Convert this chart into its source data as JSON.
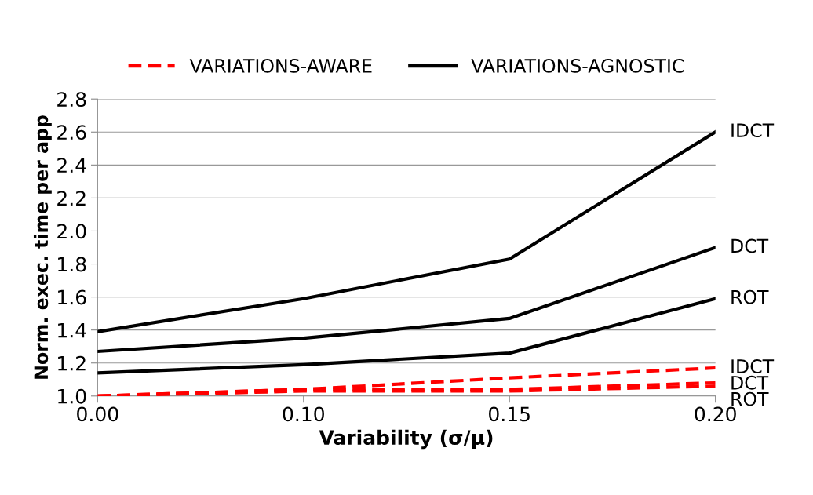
{
  "chart_data": {
    "type": "line",
    "xlabel": "Variability (σ/μ)",
    "ylabel": "Norm. exec. time per app",
    "categories": [
      "0.00",
      "0.10",
      "0.15",
      "0.20"
    ],
    "ylim": [
      1.0,
      2.8
    ],
    "yticks": [
      {
        "value": 1.0,
        "label": "1.0"
      },
      1.2,
      1.4,
      1.6,
      1.8,
      {
        "value": 2.0,
        "label": "2.0"
      },
      2.2,
      2.4,
      2.6,
      2.8
    ],
    "grid": "y",
    "legend": "top",
    "marker": "none",
    "series": [
      {
        "name": "VARIATIONS-AWARE",
        "color": "#ff0000",
        "line_style": "dashed",
        "values": [
          1.0,
          1.04,
          1.11,
          1.17
        ]
      },
      {
        "color": "#ff0000",
        "line_style": "dashed",
        "values": [
          1.0,
          1.04,
          1.04,
          1.08
        ]
      },
      {
        "color": "#ff0000",
        "line_style": "dashed",
        "values": [
          1.0,
          1.03,
          1.03,
          1.06
        ]
      },
      {
        "name": "VARIATIONS-AGNOSTIC",
        "color": "#000000",
        "line_style": "solid",
        "values": [
          1.39,
          1.59,
          1.83,
          2.6
        ]
      },
      {
        "color": "#000000",
        "line_style": "solid",
        "values": [
          1.27,
          1.35,
          1.47,
          1.9
        ]
      },
      {
        "color": "#000000",
        "line_style": "solid",
        "values": [
          1.14,
          1.19,
          1.26,
          1.59
        ]
      }
    ],
    "annotations": [
      {
        "text": "IDCT",
        "x": "0.20",
        "y": 2.6
      },
      {
        "text": "DCT",
        "x": "0.20",
        "y": 1.9
      },
      {
        "text": "ROT",
        "x": "0.20",
        "y": 1.59
      },
      {
        "text": "IDCT",
        "x": "0.20",
        "y": 1.17
      },
      {
        "text": "DCT",
        "x": "0.20",
        "y": 1.08
      },
      {
        "text": "ROT",
        "x": "0.20",
        "y": 1.06
      }
    ]
  }
}
